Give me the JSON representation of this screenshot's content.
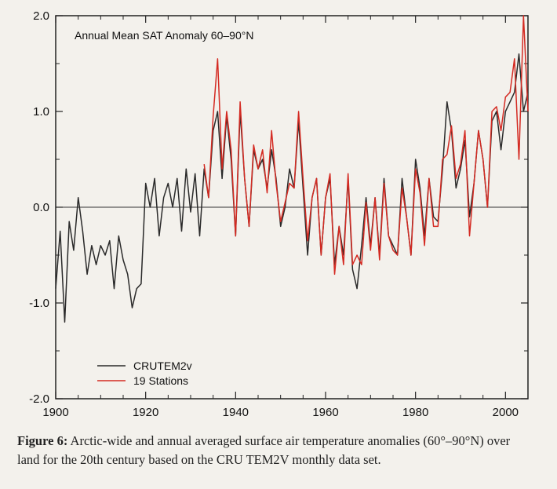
{
  "chart_data": {
    "type": "line",
    "title": "Annual Mean SAT Anomaly 60–90°N",
    "xlabel": "",
    "ylabel": "",
    "xlim": [
      1900,
      2005
    ],
    "ylim": [
      -2.0,
      2.0
    ],
    "xticks": [
      1900,
      1920,
      1940,
      1960,
      1980,
      2000
    ],
    "yticks": [
      -2.0,
      -1.0,
      0.0,
      1.0,
      2.0
    ],
    "xtick_labels": [
      "1900",
      "1920",
      "1940",
      "1960",
      "1980",
      "2000"
    ],
    "ytick_labels": [
      "-2.0",
      "-1.0",
      "0.0",
      "1.0",
      "2.0"
    ],
    "legend_position": "lower-left",
    "grid": false,
    "zero_line": true,
    "series": [
      {
        "name": "CRUTEM2v",
        "color": "#2a2a2a",
        "x": [
          1900,
          1901,
          1902,
          1903,
          1904,
          1905,
          1906,
          1907,
          1908,
          1909,
          1910,
          1911,
          1912,
          1913,
          1914,
          1915,
          1916,
          1917,
          1918,
          1919,
          1920,
          1921,
          1922,
          1923,
          1924,
          1925,
          1926,
          1927,
          1928,
          1929,
          1930,
          1931,
          1932,
          1933,
          1934,
          1935,
          1936,
          1937,
          1938,
          1939,
          1940,
          1941,
          1942,
          1943,
          1944,
          1945,
          1946,
          1947,
          1948,
          1949,
          1950,
          1951,
          1952,
          1953,
          1954,
          1955,
          1956,
          1957,
          1958,
          1959,
          1960,
          1961,
          1962,
          1963,
          1964,
          1965,
          1966,
          1967,
          1968,
          1969,
          1970,
          1971,
          1972,
          1973,
          1974,
          1975,
          1976,
          1977,
          1978,
          1979,
          1980,
          1981,
          1982,
          1983,
          1984,
          1985,
          1986,
          1987,
          1988,
          1989,
          1990,
          1991,
          1992,
          1993,
          1994,
          1995,
          1996,
          1997,
          1998,
          1999,
          2000,
          2001,
          2002,
          2003,
          2004,
          2005
        ],
        "y": [
          -0.85,
          -0.25,
          -1.2,
          -0.15,
          -0.45,
          0.1,
          -0.25,
          -0.7,
          -0.4,
          -0.6,
          -0.4,
          -0.5,
          -0.35,
          -0.85,
          -0.3,
          -0.55,
          -0.7,
          -1.05,
          -0.85,
          -0.8,
          0.25,
          0.0,
          0.3,
          -0.3,
          0.1,
          0.25,
          0.0,
          0.3,
          -0.25,
          0.4,
          -0.05,
          0.35,
          -0.3,
          0.4,
          0.1,
          0.8,
          1.0,
          0.3,
          0.95,
          0.5,
          -0.3,
          1.0,
          0.3,
          -0.2,
          0.6,
          0.4,
          0.5,
          0.2,
          0.6,
          0.3,
          -0.2,
          0.0,
          0.4,
          0.2,
          0.9,
          0.2,
          -0.5,
          0.1,
          0.3,
          -0.5,
          0.1,
          0.3,
          -0.6,
          -0.2,
          -0.5,
          0.3,
          -0.65,
          -0.85,
          -0.4,
          0.1,
          -0.4,
          0.1,
          -0.5,
          0.3,
          -0.3,
          -0.4,
          -0.5,
          0.3,
          -0.1,
          -0.5,
          0.5,
          0.2,
          -0.3,
          0.3,
          -0.1,
          -0.15,
          0.4,
          1.1,
          0.8,
          0.2,
          0.4,
          0.7,
          -0.1,
          0.25,
          0.8,
          0.5,
          0.0,
          0.9,
          1.0,
          0.6,
          1.0,
          1.1,
          1.2,
          1.6,
          1.0,
          1.2
        ]
      },
      {
        "name": "19 Stations",
        "color": "#d42a22",
        "x": [
          1933,
          1934,
          1935,
          1936,
          1937,
          1938,
          1939,
          1940,
          1941,
          1942,
          1943,
          1944,
          1945,
          1946,
          1947,
          1948,
          1949,
          1950,
          1951,
          1952,
          1953,
          1954,
          1955,
          1956,
          1957,
          1958,
          1959,
          1960,
          1961,
          1962,
          1963,
          1964,
          1965,
          1966,
          1967,
          1968,
          1969,
          1970,
          1971,
          1972,
          1973,
          1974,
          1975,
          1976,
          1977,
          1978,
          1979,
          1980,
          1981,
          1982,
          1983,
          1984,
          1985,
          1986,
          1987,
          1988,
          1989,
          1990,
          1991,
          1992,
          1993,
          1994,
          1995,
          1996,
          1997,
          1998,
          1999,
          2000,
          2001,
          2002,
          2003,
          2004,
          2005
        ],
        "y": [
          0.45,
          0.1,
          0.95,
          1.55,
          0.4,
          1.0,
          0.6,
          -0.3,
          1.1,
          0.3,
          -0.2,
          0.65,
          0.4,
          0.6,
          0.15,
          0.8,
          0.25,
          -0.15,
          0.05,
          0.25,
          0.2,
          1.0,
          0.3,
          -0.35,
          0.1,
          0.3,
          -0.5,
          0.1,
          0.35,
          -0.7,
          -0.2,
          -0.6,
          0.35,
          -0.6,
          -0.5,
          -0.6,
          0.05,
          -0.45,
          0.1,
          -0.55,
          0.25,
          -0.3,
          -0.45,
          -0.5,
          0.2,
          -0.1,
          -0.5,
          0.4,
          0.15,
          -0.4,
          0.3,
          -0.2,
          -0.2,
          0.5,
          0.55,
          0.85,
          0.3,
          0.45,
          0.8,
          -0.3,
          0.25,
          0.8,
          0.5,
          0.0,
          1.0,
          1.05,
          0.8,
          1.15,
          1.2,
          1.55,
          0.5,
          2.0,
          1.0
        ]
      }
    ]
  },
  "caption": {
    "label": "Figure 6:",
    "text": "Arctic-wide and annual averaged surface air temperature anomalies (60°–90°N) over land for the 20th century based on the CRU TEM2V monthly data set."
  }
}
